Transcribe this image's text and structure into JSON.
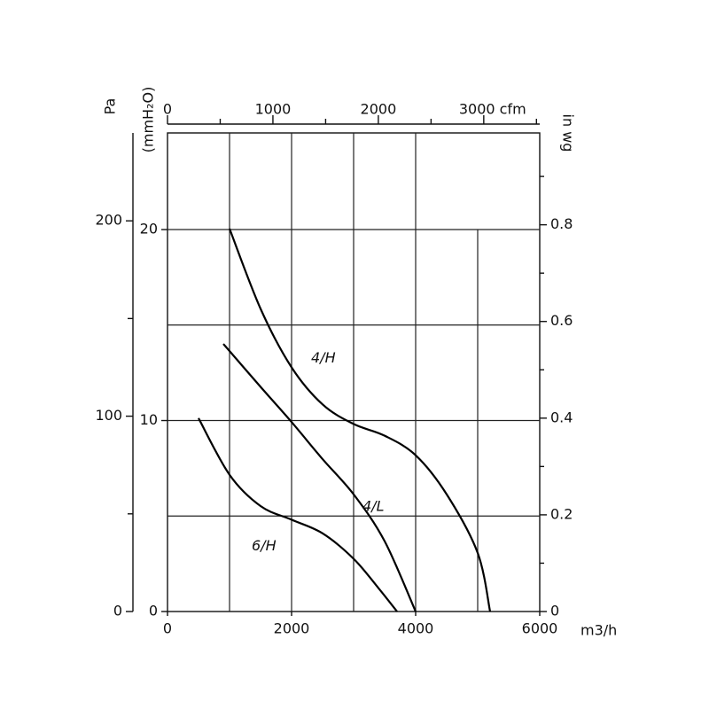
{
  "chart_data": {
    "type": "line",
    "x_label": "m3/h",
    "xlim": [
      0,
      6000
    ],
    "xticks": [
      0,
      2000,
      4000,
      6000
    ],
    "xgrid": [
      1000,
      2000,
      3000,
      4000,
      5000
    ],
    "x2lim": [
      0,
      3531
    ],
    "x2ticks": [
      0,
      1000,
      2000,
      {
        "value": 3000,
        "label": "3000 cfm"
      }
    ],
    "x2minor": [
      500,
      1500,
      2500,
      3500
    ],
    "y_label": "Pa",
    "ylim": [
      0,
      245
    ],
    "yticks": [
      0,
      100,
      200
    ],
    "yminor": [
      50,
      150
    ],
    "y3_label": "(mmH₂O)",
    "y3lim": [
      0,
      25.06
    ],
    "y3ticks": [
      0,
      10,
      20
    ],
    "y3grid": [
      5,
      10,
      15,
      20
    ],
    "y2_label": "in wg",
    "y2lim": [
      0,
      0.99
    ],
    "y2ticks": [
      0,
      0.2,
      0.4,
      0.6,
      0.8
    ],
    "y2minor": [
      0.1,
      0.3,
      0.5,
      0.7,
      0.9
    ],
    "series": [
      {
        "name": "4/H",
        "color": "#000000",
        "x": [
          1000,
          1500,
          2000,
          2500,
          3000,
          3500,
          4000,
          4500,
          5000,
          5200
        ],
        "values": [
          196,
          155,
          125,
          106,
          96,
          90,
          80,
          60,
          30,
          0
        ]
      },
      {
        "name": "4/L",
        "color": "#000000",
        "x": [
          900,
          1500,
          2000,
          2500,
          3000,
          3500,
          4000
        ],
        "values": [
          137,
          115,
          97,
          78,
          60,
          36,
          0
        ]
      },
      {
        "name": "6/H",
        "color": "#000000",
        "x": [
          500,
          1000,
          1500,
          2000,
          2500,
          3000,
          3400,
          3700
        ],
        "values": [
          99,
          70,
          54,
          47,
          40,
          27,
          12,
          0
        ]
      }
    ]
  }
}
